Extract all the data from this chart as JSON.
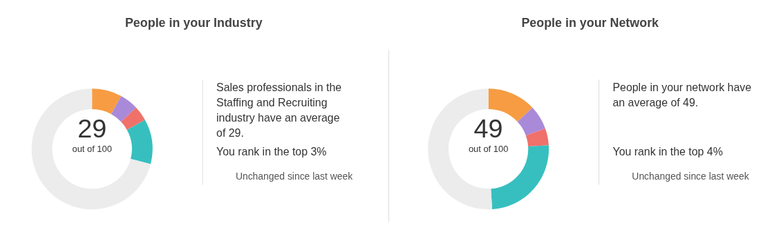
{
  "chart_data": [
    {
      "type": "donut",
      "title": "People in your Industry",
      "categories": [
        null,
        null,
        null,
        null,
        null
      ],
      "values": [
        8,
        5,
        4,
        12,
        71
      ],
      "colors": [
        "#f79c42",
        "#a98ad9",
        "#f0706a",
        "#37bfbf",
        "#ececec"
      ],
      "annotations": [
        "29",
        "out of 100",
        "Sales professionals in the\nStaffing and Recruiting\nindustry have an average\nof 29.",
        "You rank in the top 3%",
        "Unchanged since last week"
      ]
    },
    {
      "type": "donut",
      "title": "People in your Network",
      "categories": [
        null,
        null,
        null,
        null,
        null
      ],
      "values": [
        13,
        6.5,
        4.5,
        25,
        51
      ],
      "colors": [
        "#f79c42",
        "#a98ad9",
        "#f0706a",
        "#37bfbf",
        "#ececec"
      ],
      "annotations": [
        "49",
        "out of 100",
        "People in your network have\nan average of 49.",
        "You rank in the top 4%",
        "Unchanged since last week"
      ]
    }
  ]
}
